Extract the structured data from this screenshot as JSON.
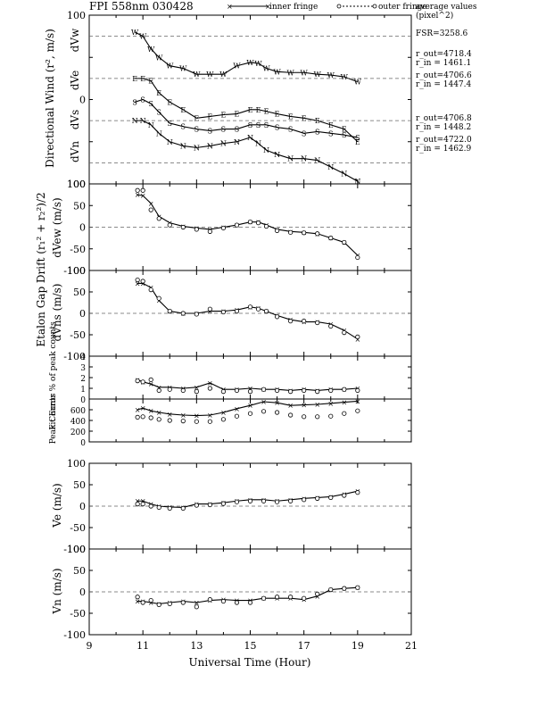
{
  "header": {
    "title": "FPI 558nm 030428",
    "legend_inner": "inner fringe",
    "legend_outer": "outer fringe",
    "avg_title": "average values",
    "avg_unit": "(pixel^2)",
    "fsr": "FSR=3258.6",
    "rings": [
      {
        "r_out": "r_out=4718.4",
        "r_in": "r_in = 1461.1"
      },
      {
        "r_out": "r_out=4706.6",
        "r_in": "r_in = 1447.4"
      },
      {
        "r_out": "r_out=4706.8",
        "r_in": "r_in = 1448.2"
      },
      {
        "r_out": "r_out=4722.0",
        "r_in": "r_in = 1462.9"
      }
    ]
  },
  "chart_data": [
    {
      "type": "line",
      "panel": "directional_wind",
      "ylabel": "Directional Wind (r², m/s)",
      "xlabel": "",
      "xlim": [
        9,
        21
      ],
      "ylim": [
        -100,
        100
      ],
      "yticks": [
        -100,
        -50,
        0,
        50,
        100
      ],
      "ytick_labels": [
        "100",
        "",
        "0",
        "",
        "100"
      ],
      "channel_labels": [
        "dVw",
        "dVe",
        "dVs",
        "dVn"
      ],
      "series": [
        {
          "marker": "W",
          "offset": 75,
          "x": [
            10.7,
            11.0,
            11.3,
            11.6,
            12.0,
            12.5,
            13.0,
            13.5,
            14.0,
            14.5,
            15.0,
            15.3,
            15.6,
            16.0,
            16.5,
            17.0,
            17.5,
            18.0,
            18.5,
            19.0
          ],
          "y": [
            80,
            75,
            60,
            50,
            40,
            37,
            30,
            30,
            30,
            40,
            44,
            43,
            37,
            33,
            32,
            32,
            30,
            29,
            27,
            21
          ]
        },
        {
          "marker": "E",
          "offset": 25,
          "x": [
            10.7,
            11.0,
            11.3,
            11.6,
            12.0,
            12.5,
            13.0,
            13.5,
            14.0,
            14.5,
            15.0,
            15.3,
            15.6,
            16.0,
            16.5,
            17.0,
            17.5,
            18.0,
            18.5,
            19.0
          ],
          "y": [
            25,
            25,
            22,
            8,
            -3,
            -12,
            -22,
            -20,
            -18,
            -17,
            -12,
            -12,
            -14,
            -17,
            -20,
            -22,
            -25,
            -30,
            -35,
            -50
          ]
        },
        {
          "marker": "S",
          "offset": -25,
          "x": [
            10.7,
            11.0,
            11.3,
            11.6,
            12.0,
            12.5,
            13.0,
            13.5,
            14.0,
            14.5,
            15.0,
            15.3,
            15.6,
            16.0,
            16.5,
            17.0,
            17.5,
            18.0,
            18.5,
            19.0
          ],
          "y": [
            -3,
            0,
            -5,
            -15,
            -28,
            -32,
            -35,
            -37,
            -35,
            -35,
            -30,
            -30,
            -30,
            -33,
            -35,
            -40,
            -38,
            -40,
            -42,
            -45
          ]
        },
        {
          "marker": "N",
          "offset": -75,
          "x": [
            10.7,
            11.0,
            11.3,
            11.6,
            12.0,
            12.5,
            13.0,
            13.5,
            14.0,
            14.5,
            15.0,
            15.3,
            15.6,
            16.0,
            16.5,
            17.0,
            17.5,
            18.0,
            18.5,
            19.0
          ],
          "y": [
            -25,
            -25,
            -30,
            -40,
            -50,
            -55,
            -57,
            -55,
            -52,
            -50,
            -45,
            -52,
            -60,
            -65,
            -70,
            -70,
            -72,
            -80,
            -88,
            -97
          ]
        }
      ]
    },
    {
      "type": "line",
      "panel": "dVew",
      "ylabel": "dVew (m/s)",
      "xlim": [
        9,
        21
      ],
      "ylim": [
        -100,
        100
      ],
      "yticks": [
        -100,
        -50,
        0,
        50,
        100
      ],
      "series": [
        {
          "name": "inner fringe",
          "x": [
            10.8,
            11.0,
            11.3,
            11.6,
            12.0,
            12.5,
            13.0,
            13.5,
            14.0,
            14.5,
            15.0,
            15.3,
            15.6,
            16.0,
            16.5,
            17.0,
            17.5,
            18.0,
            18.5,
            19.0
          ],
          "y": [
            75,
            73,
            55,
            25,
            10,
            2,
            -2,
            -5,
            0,
            5,
            12,
            12,
            5,
            -5,
            -10,
            -12,
            -15,
            -25,
            -35,
            -65
          ]
        },
        {
          "name": "outer fringe",
          "x": [
            10.8,
            11.0,
            11.3,
            11.6,
            12.0,
            12.5,
            13.0,
            13.5,
            14.0,
            14.5,
            15.0,
            15.3,
            15.6,
            16.0,
            16.5,
            17.0,
            17.5,
            18.0,
            18.5,
            19.0
          ],
          "y": [
            85,
            85,
            40,
            20,
            5,
            0,
            -5,
            -10,
            -2,
            5,
            12,
            10,
            2,
            -8,
            -12,
            -13,
            -15,
            -25,
            -35,
            -70
          ]
        }
      ]
    },
    {
      "type": "line",
      "panel": "dVns",
      "ylabel": "dVns (m/s)",
      "xlim": [
        9,
        21
      ],
      "ylim": [
        -100,
        100
      ],
      "yticks": [
        -100,
        -50,
        0,
        50,
        100
      ],
      "series": [
        {
          "name": "inner fringe",
          "x": [
            10.8,
            11.0,
            11.3,
            11.6,
            12.0,
            12.5,
            13.0,
            13.5,
            14.0,
            14.5,
            15.0,
            15.3,
            15.6,
            16.0,
            16.5,
            17.0,
            17.5,
            18.0,
            18.5,
            19.0
          ],
          "y": [
            70,
            70,
            60,
            30,
            5,
            0,
            0,
            5,
            5,
            8,
            15,
            12,
            5,
            -5,
            -15,
            -20,
            -20,
            -25,
            -40,
            -60
          ]
        },
        {
          "name": "outer fringe",
          "x": [
            10.8,
            11.0,
            11.3,
            11.6,
            12.0,
            12.5,
            13.0,
            13.5,
            14.0,
            14.5,
            15.0,
            15.3,
            15.6,
            16.0,
            16.5,
            17.0,
            17.5,
            18.0,
            18.5,
            19.0
          ],
          "y": [
            78,
            75,
            55,
            35,
            5,
            0,
            -2,
            10,
            3,
            5,
            15,
            10,
            5,
            -8,
            -18,
            -18,
            -22,
            -30,
            -45,
            -55
          ]
        }
      ]
    },
    {
      "type": "line",
      "panel": "fit_error",
      "ylabel": "Fit Error % of peak counts",
      "xlim": [
        9,
        21
      ],
      "ylim": [
        0,
        4
      ],
      "yticks": [
        0,
        1,
        2,
        3,
        4
      ],
      "series": [
        {
          "name": "inner fringe",
          "x": [
            10.8,
            11.0,
            11.3,
            11.6,
            12.0,
            12.5,
            13.0,
            13.5,
            14.0,
            14.5,
            15.0,
            15.5,
            16.0,
            16.5,
            17.0,
            17.5,
            18.0,
            18.5,
            19.0
          ],
          "y": [
            1.8,
            1.6,
            1.4,
            1.1,
            1.1,
            1.0,
            1.1,
            1.5,
            0.9,
            0.9,
            1.0,
            0.9,
            0.9,
            0.8,
            0.9,
            0.8,
            0.9,
            0.9,
            1.0
          ]
        },
        {
          "name": "outer fringe",
          "x": [
            10.8,
            11.0,
            11.3,
            11.6,
            12.0,
            12.5,
            13.0,
            13.5,
            14.0,
            14.5,
            15.0,
            15.5,
            16.0,
            16.5,
            17.0,
            17.5,
            18.0,
            18.5,
            19.0
          ],
          "y": [
            1.7,
            1.6,
            1.8,
            0.8,
            0.9,
            0.8,
            0.7,
            1.0,
            0.7,
            0.8,
            0.7,
            0.9,
            0.8,
            0.7,
            0.8,
            0.7,
            0.8,
            0.9,
            0.8
          ]
        }
      ]
    },
    {
      "type": "line",
      "panel": "peak_counts",
      "ylabel": "Peak Counts",
      "xlim": [
        9,
        21
      ],
      "ylim": [
        0,
        800
      ],
      "yticks": [
        0,
        200,
        400,
        600
      ],
      "series": [
        {
          "name": "inner fringe",
          "x": [
            10.8,
            11.0,
            11.3,
            11.6,
            12.0,
            12.5,
            13.0,
            13.5,
            14.0,
            14.5,
            15.0,
            15.5,
            16.0,
            16.5,
            17.0,
            17.5,
            18.0,
            18.5,
            19.0
          ],
          "y": [
            600,
            630,
            580,
            550,
            520,
            500,
            490,
            500,
            550,
            620,
            680,
            750,
            730,
            680,
            690,
            700,
            720,
            740,
            760
          ]
        },
        {
          "name": "outer fringe",
          "x": [
            10.8,
            11.0,
            11.3,
            11.6,
            12.0,
            12.5,
            13.0,
            13.5,
            14.0,
            14.5,
            15.0,
            15.5,
            16.0,
            16.5,
            17.0,
            17.5,
            18.0,
            18.5,
            19.0
          ],
          "y": [
            460,
            470,
            450,
            420,
            400,
            390,
            380,
            380,
            420,
            480,
            530,
            570,
            550,
            500,
            470,
            470,
            480,
            530,
            580
          ]
        }
      ]
    },
    {
      "type": "line",
      "panel": "Ve",
      "ylabel": "Ve (m/s)",
      "xlim": [
        9,
        21
      ],
      "ylim": [
        -100,
        100
      ],
      "yticks": [
        -100,
        -50,
        0,
        50,
        100
      ],
      "series": [
        {
          "name": "inner fringe",
          "x": [
            10.8,
            11.0,
            11.3,
            11.6,
            12.0,
            12.5,
            13.0,
            13.5,
            14.0,
            14.5,
            15.0,
            15.5,
            16.0,
            16.5,
            17.0,
            17.5,
            18.0,
            18.5,
            19.0
          ],
          "y": [
            12,
            12,
            5,
            0,
            -2,
            -3,
            5,
            5,
            8,
            12,
            15,
            15,
            12,
            15,
            18,
            20,
            22,
            28,
            35
          ]
        },
        {
          "name": "outer fringe",
          "x": [
            10.8,
            11.0,
            11.3,
            11.6,
            12.0,
            12.5,
            13.0,
            13.5,
            14.0,
            14.5,
            15.0,
            15.5,
            16.0,
            16.5,
            17.0,
            17.5,
            18.0,
            18.5,
            19.0
          ],
          "y": [
            5,
            5,
            0,
            -3,
            -5,
            -5,
            2,
            3,
            6,
            10,
            12,
            12,
            10,
            12,
            15,
            18,
            20,
            25,
            32
          ]
        }
      ]
    },
    {
      "type": "line",
      "panel": "Vn",
      "ylabel": "Vn (m/s)",
      "xlabel": "Universal Time (Hour)",
      "xlim": [
        9,
        21
      ],
      "ylim": [
        -100,
        100
      ],
      "xticks": [
        9,
        11,
        13,
        15,
        17,
        19,
        21
      ],
      "yticks": [
        -100,
        -50,
        0,
        50,
        100
      ],
      "series": [
        {
          "name": "inner fringe",
          "x": [
            10.8,
            11.0,
            11.3,
            11.6,
            12.0,
            12.5,
            13.0,
            13.5,
            14.0,
            14.5,
            15.0,
            15.5,
            16.0,
            16.5,
            17.0,
            17.5,
            18.0,
            18.5,
            19.0
          ],
          "y": [
            -22,
            -22,
            -25,
            -28,
            -25,
            -22,
            -25,
            -20,
            -18,
            -20,
            -20,
            -15,
            -15,
            -15,
            -18,
            -10,
            5,
            8,
            10
          ]
        },
        {
          "name": "outer fringe",
          "x": [
            10.8,
            11.0,
            11.3,
            11.6,
            12.0,
            12.5,
            13.0,
            13.5,
            14.0,
            14.5,
            15.0,
            15.5,
            16.0,
            16.5,
            17.0,
            17.5,
            18.0,
            18.5,
            19.0
          ],
          "y": [
            -12,
            -25,
            -20,
            -30,
            -28,
            -25,
            -35,
            -18,
            -22,
            -25,
            -25,
            -15,
            -12,
            -12,
            -15,
            -5,
            5,
            8,
            10
          ]
        }
      ]
    }
  ],
  "shared": {
    "ylabel_gap": "Etalon Gap Drift (r₁² + r₂²)/2",
    "x_tick_labels": [
      "9",
      "11",
      "13",
      "15",
      "17",
      "19",
      "21"
    ]
  }
}
